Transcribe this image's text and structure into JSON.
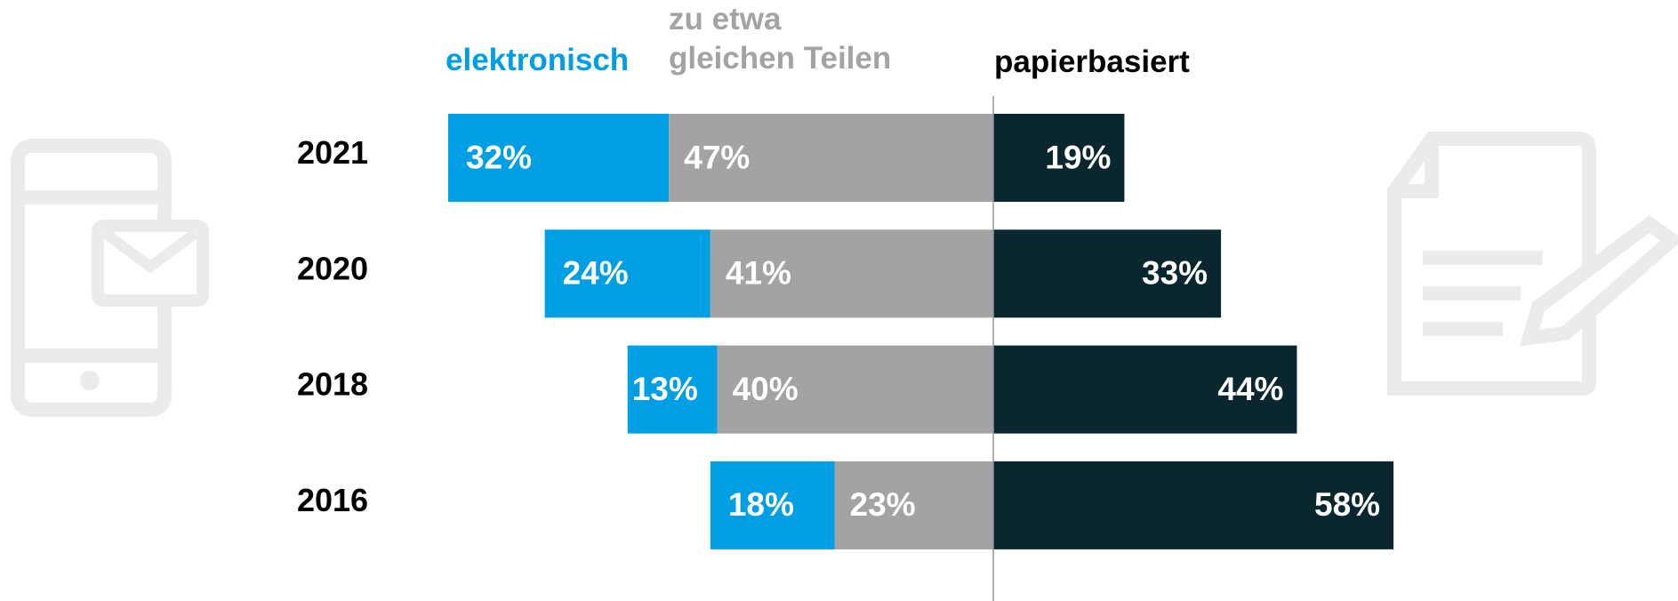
{
  "chart_data": {
    "type": "diverging-bar",
    "categories": [
      "2021",
      "2020",
      "2018",
      "2016"
    ],
    "series": [
      {
        "name": "elektronisch",
        "color": "#009fe3",
        "values": [
          32,
          24,
          13,
          18
        ],
        "value_labels": [
          "32%",
          "24%",
          "13%",
          "18%"
        ]
      },
      {
        "name": "zu etwa\ngleichen Teilen",
        "color": "#a3a3a3",
        "values": [
          47,
          41,
          40,
          23
        ],
        "value_labels": [
          "47%",
          "41%",
          "40%",
          "23%"
        ]
      },
      {
        "name": "papierbasiert",
        "color": "#0a2730",
        "values": [
          19,
          33,
          44,
          58
        ],
        "value_labels": [
          "19%",
          "33%",
          "44%",
          "58%"
        ]
      }
    ]
  }
}
